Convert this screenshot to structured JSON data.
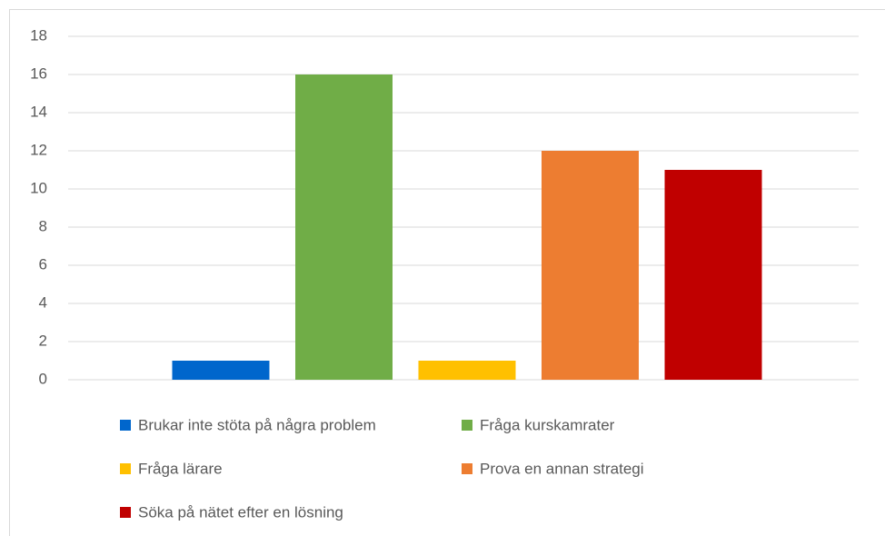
{
  "chart_data": {
    "type": "bar",
    "categories": [
      null
    ],
    "series": [
      {
        "name": "Brukar inte stöta på några problem",
        "color": "#0066cc",
        "values": [
          1
        ]
      },
      {
        "name": "Fråga kurskamrater",
        "color": "#70ad47",
        "values": [
          16
        ]
      },
      {
        "name": "Fråga lärare",
        "color": "#ffc000",
        "values": [
          1
        ]
      },
      {
        "name": "Prova en annan strategi",
        "color": "#ed7d31",
        "values": [
          12
        ]
      },
      {
        "name": "Söka på nätet efter en lösning",
        "color": "#c00000",
        "values": [
          11
        ]
      }
    ],
    "ylim": [
      0,
      18
    ],
    "yticks": [
      0,
      2,
      4,
      6,
      8,
      10,
      12,
      14,
      16,
      18
    ],
    "grid": true,
    "legend": "bottom"
  }
}
